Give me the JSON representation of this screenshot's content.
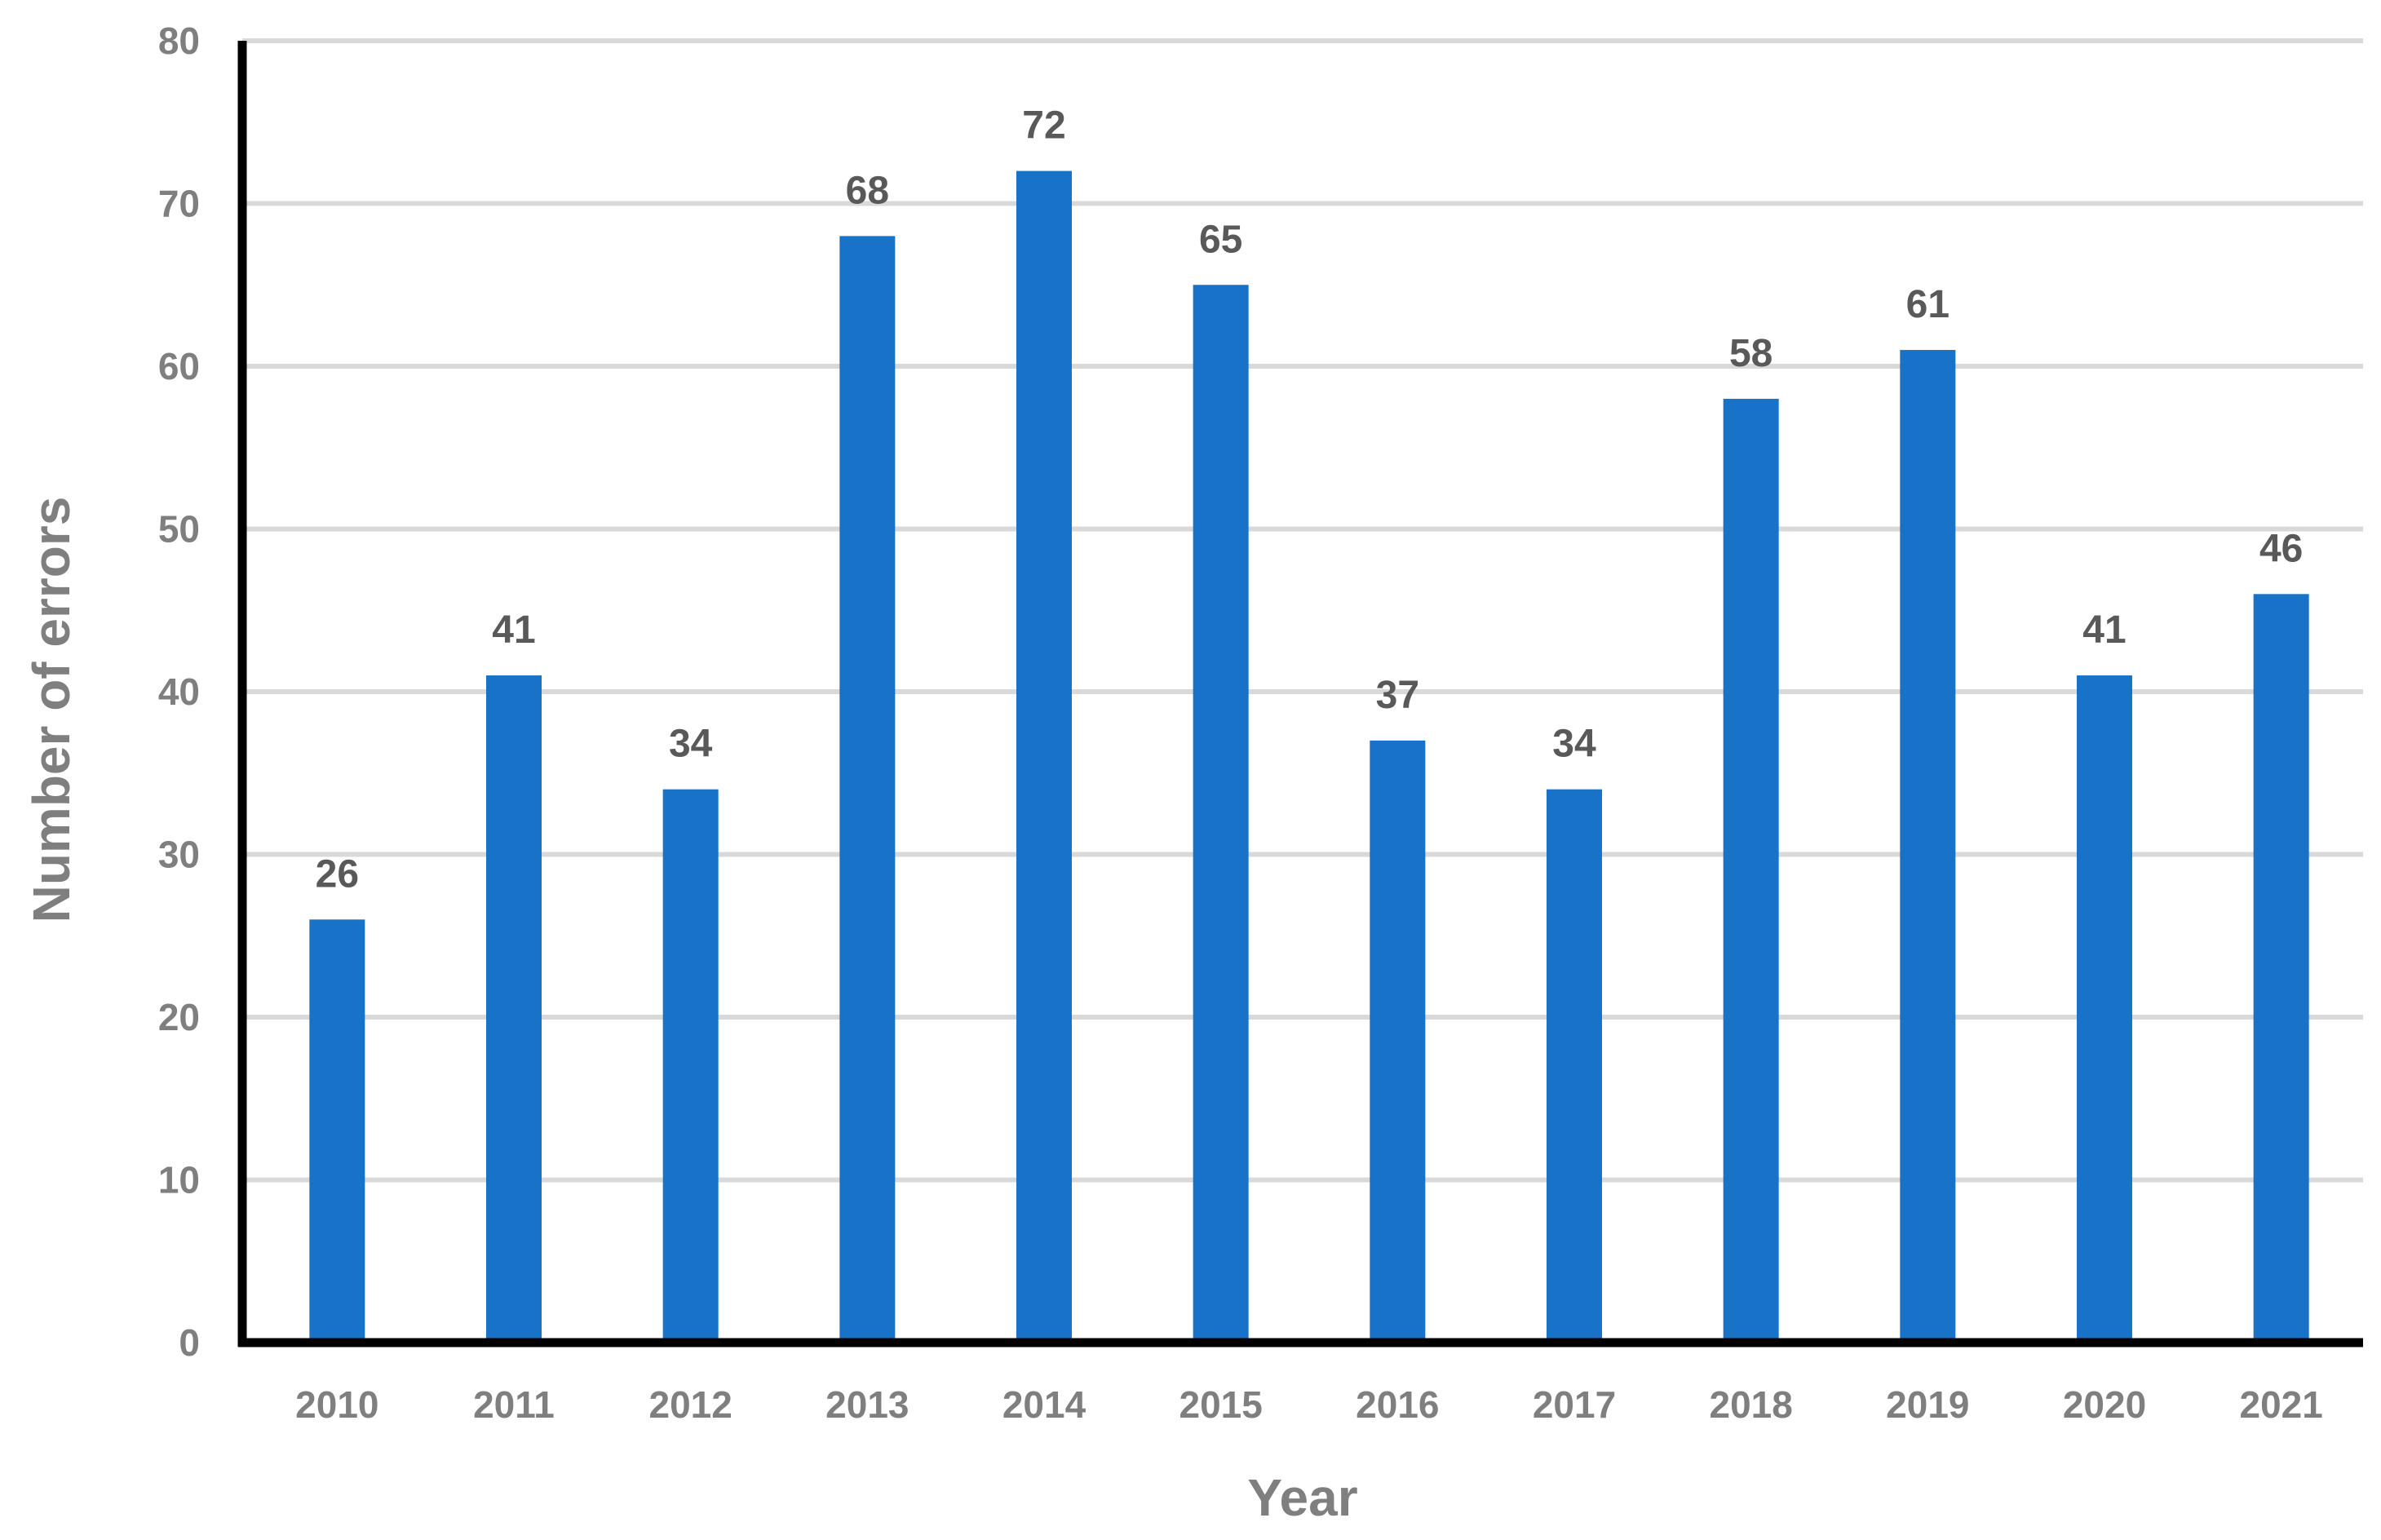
{
  "chart_data": {
    "type": "bar",
    "categories": [
      "2010",
      "2011",
      "2012",
      "2013",
      "2014",
      "2015",
      "2016",
      "2017",
      "2018",
      "2019",
      "2020",
      "2021"
    ],
    "values": [
      26,
      41,
      34,
      68,
      72,
      65,
      37,
      34,
      58,
      61,
      41,
      46
    ],
    "data_labels": [
      "26",
      "41",
      "34",
      "68",
      "72",
      "65",
      "37",
      "34",
      "58",
      "61",
      "41",
      "46"
    ],
    "title": "",
    "xlabel": "Year",
    "ylabel": "Number of errors",
    "ylim": [
      0,
      80
    ],
    "yticks": [
      "0",
      "10",
      "20",
      "30",
      "40",
      "50",
      "60",
      "70",
      "80"
    ],
    "grid": true,
    "legend": "none",
    "bar_color": "#1872c8",
    "grid_color": "#d9d9d9",
    "axis_color": "#000000",
    "tick_label_color": "#7f7f7f",
    "data_label_color": "#595959"
  }
}
